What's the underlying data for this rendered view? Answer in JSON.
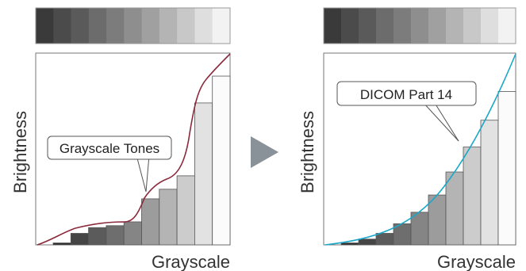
{
  "colors": {
    "left_curve": "#8b2a3c",
    "right_curve": "#1aa7c9",
    "arrow": "#8a9299",
    "strip_swatches": [
      "#3a3a3a",
      "#4b4b4b",
      "#5a5a5a",
      "#6c6c6c",
      "#7c7c7c",
      "#8e8e8e",
      "#a0a0a0",
      "#b4b4b4",
      "#c8c8c8",
      "#dedede",
      "#f2f2f2"
    ]
  },
  "left_panel": {
    "ylabel": "Brightness",
    "xlabel": "Grayscale",
    "callout": "Grayscale Tones",
    "bars": [
      {
        "value": 0.01,
        "fill": "#2e2e2e"
      },
      {
        "value": 0.06,
        "fill": "#454545"
      },
      {
        "value": 0.09,
        "fill": "#5b5b5b"
      },
      {
        "value": 0.1,
        "fill": "#6e6e6e"
      },
      {
        "value": 0.12,
        "fill": "#858585"
      },
      {
        "value": 0.24,
        "fill": "#9c9c9c"
      },
      {
        "value": 0.29,
        "fill": "#b4b4b4"
      },
      {
        "value": 0.36,
        "fill": "#cccccc"
      },
      {
        "value": 0.74,
        "fill": "#e2e2e2"
      },
      {
        "value": 0.88,
        "fill": "#fbfbfb"
      }
    ]
  },
  "right_panel": {
    "ylabel": "Brightness",
    "xlabel": "Grayscale",
    "callout": "DICOM Part 14",
    "bars": [
      {
        "value": 0.01,
        "fill": "#2e2e2e"
      },
      {
        "value": 0.03,
        "fill": "#454545"
      },
      {
        "value": 0.06,
        "fill": "#5b5b5b"
      },
      {
        "value": 0.11,
        "fill": "#6e6e6e"
      },
      {
        "value": 0.17,
        "fill": "#858585"
      },
      {
        "value": 0.26,
        "fill": "#9c9c9c"
      },
      {
        "value": 0.38,
        "fill": "#b4b4b4"
      },
      {
        "value": 0.51,
        "fill": "#cccccc"
      },
      {
        "value": 0.65,
        "fill": "#e2e2e2"
      },
      {
        "value": 0.8,
        "fill": "#fbfbfb"
      }
    ]
  }
}
